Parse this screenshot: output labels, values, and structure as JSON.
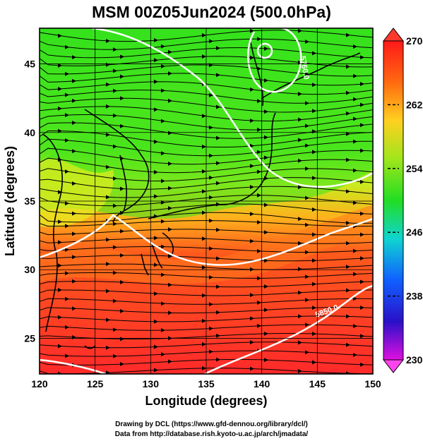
{
  "title": "MSM 00Z05Jun2024 (500.0hPa)",
  "axes": {
    "xlabel": "Longitude (degrees)",
    "ylabel": "Latitude  (degrees)",
    "xticks": [
      120,
      125,
      130,
      135,
      140,
      145,
      150
    ],
    "yticks": [
      25,
      30,
      35,
      40,
      45
    ],
    "xrange": [
      120,
      150
    ],
    "yrange": [
      22.4,
      47.6
    ]
  },
  "colorbar": {
    "ticks": [
      270,
      262,
      254,
      246,
      238,
      230
    ],
    "range": [
      230,
      270
    ]
  },
  "contour_labels": [
    "5850.0",
    "5760.0"
  ],
  "credits": {
    "line1": "Drawing by DCL (https://www.gfd-dennou.org/library/dcl/)",
    "line2": "Data from http://database.rish.kyoto-u.ac.jp/arch/jmadata/"
  },
  "colors": {
    "warm": "#ff2a1a",
    "mid": "#ffd21f",
    "cool": "#2ee61a",
    "contour": "#ffffff",
    "coast": "#000000"
  }
}
